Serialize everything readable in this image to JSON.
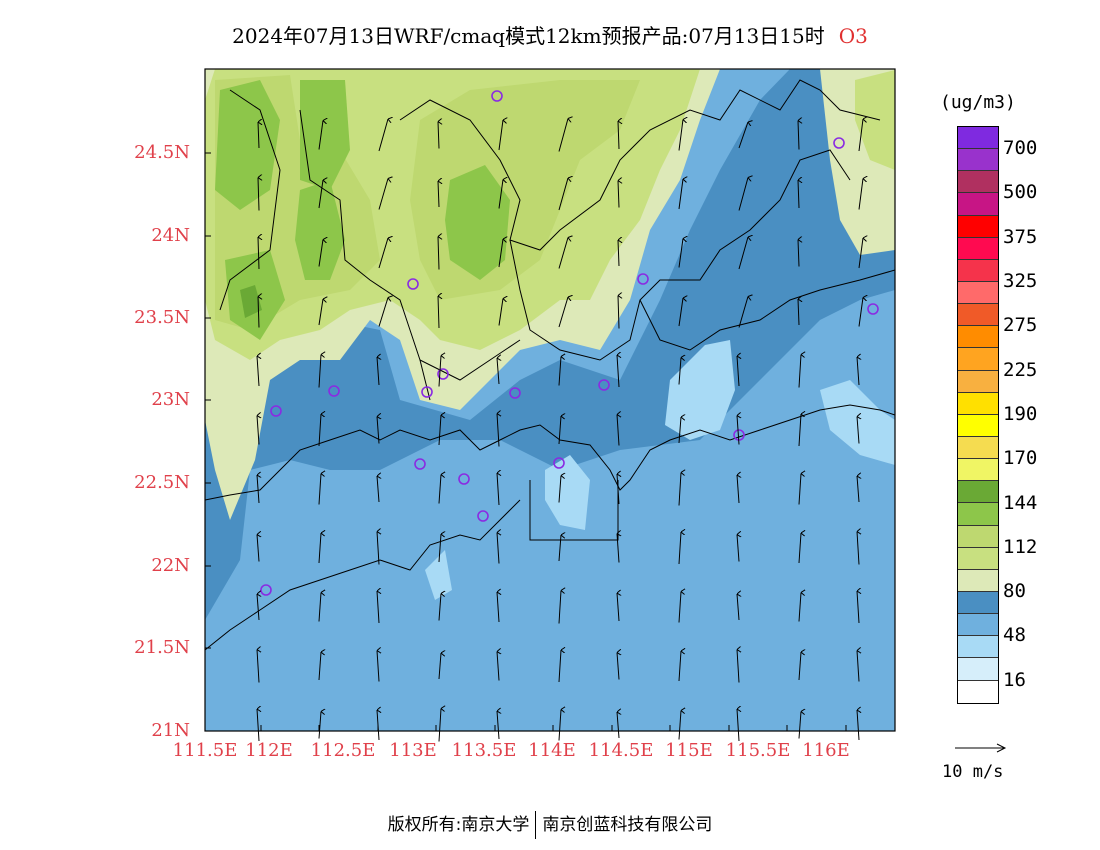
{
  "title": "2024年07月13日WRF/cmaq模式12km预报产品:07月13日15时",
  "species": "O3",
  "unit": "(ug/m3)",
  "y_axis": {
    "ticks": [
      "24.5N",
      "24N",
      "23.5N",
      "23N",
      "22.5N",
      "22N",
      "21.5N",
      "21N"
    ]
  },
  "x_axis": {
    "ticks": [
      "111.5E",
      "112E",
      "112.5E",
      "113E",
      "113.5E",
      "114E",
      "114.5E",
      "115E",
      "115.5E",
      "116E"
    ]
  },
  "legend": {
    "levels": [
      {
        "label": "700",
        "color": "#7f2ae0"
      },
      {
        "label": "",
        "color": "#9932cc"
      },
      {
        "label": "500",
        "color": "#b03060"
      },
      {
        "label": "",
        "color": "#c71585"
      },
      {
        "label": "375",
        "color": "#ff0000"
      },
      {
        "label": "",
        "color": "#ff0a50"
      },
      {
        "label": "325",
        "color": "#f5334b"
      },
      {
        "label": "",
        "color": "#ff6a6a"
      },
      {
        "label": "275",
        "color": "#f05a28"
      },
      {
        "label": "",
        "color": "#ff8c00"
      },
      {
        "label": "225",
        "color": "#ffa420"
      },
      {
        "label": "",
        "color": "#f8b040"
      },
      {
        "label": "190",
        "color": "#ffe000"
      },
      {
        "label": "",
        "color": "#ffff00"
      },
      {
        "label": "170",
        "color": "#f5dc50"
      },
      {
        "label": "",
        "color": "#f0f564"
      },
      {
        "label": "144",
        "color": "#6aa935"
      },
      {
        "label": "",
        "color": "#8dc64a"
      },
      {
        "label": "112",
        "color": "#bed870"
      },
      {
        "label": "",
        "color": "#c8e080"
      },
      {
        "label": "80",
        "color": "#dde9b8"
      },
      {
        "label": "",
        "color": "#4a8fc2"
      },
      {
        "label": "48",
        "color": "#6fb0de"
      },
      {
        "label": "",
        "color": "#a8daf5"
      },
      {
        "label": "16",
        "color": "#d6eefa"
      },
      {
        "label": "",
        "color": "#ffffff"
      }
    ]
  },
  "wind_reference": {
    "label": "10 m/s"
  },
  "footer": {
    "left": "版权所有:南京大学",
    "right": "南京创蓝科技有限公司"
  }
}
